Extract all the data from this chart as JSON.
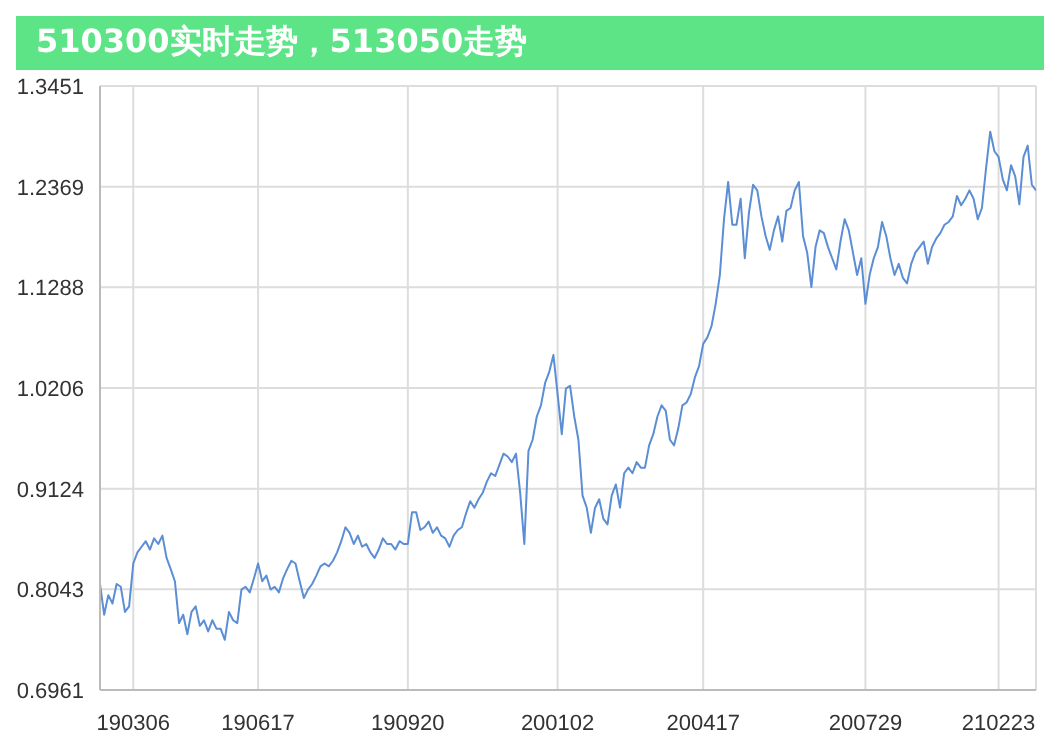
{
  "chart_data": {
    "type": "line",
    "title": "510300实时走势，513050走势",
    "categories": [
      null,
      null,
      null,
      null,
      null,
      null,
      null,
      null,
      "190306",
      null,
      null,
      null,
      null,
      null,
      null,
      null,
      null,
      null,
      null,
      null,
      null,
      null,
      null,
      null,
      null,
      null,
      null,
      null,
      null,
      null,
      null,
      null,
      null,
      null,
      null,
      null,
      null,
      null,
      "190617",
      null,
      null,
      null,
      null,
      null,
      null,
      null,
      null,
      null,
      null,
      null,
      null,
      null,
      null,
      null,
      null,
      null,
      null,
      null,
      null,
      null,
      null,
      null,
      null,
      null,
      null,
      null,
      null,
      null,
      null,
      null,
      null,
      null,
      null,
      null,
      "190920",
      null,
      null,
      null,
      null,
      null,
      null,
      null,
      null,
      null,
      null,
      null,
      null,
      null,
      null,
      null,
      null,
      null,
      null,
      null,
      null,
      null,
      null,
      null,
      null,
      null,
      null,
      null,
      null,
      null,
      null,
      null,
      null,
      null,
      null,
      null,
      "200102",
      null,
      null,
      null,
      null,
      null,
      null,
      null,
      null,
      null,
      null,
      null,
      null,
      null,
      null,
      null,
      null,
      null,
      null,
      null,
      null,
      null,
      null,
      null,
      null,
      null,
      null,
      null,
      null,
      null,
      null,
      null,
      null,
      null,
      null,
      "200417",
      null,
      null,
      null,
      null,
      null,
      null,
      null,
      null,
      null,
      null,
      null,
      null,
      null,
      null,
      null,
      null,
      null,
      null,
      null,
      null,
      null,
      null,
      null,
      null,
      null,
      null,
      null,
      null,
      null,
      null,
      null,
      null,
      null,
      null,
      null,
      null,
      null,
      null,
      "200729",
      null,
      null,
      null,
      null,
      null,
      null,
      null,
      null,
      null,
      null,
      null,
      null,
      null,
      null,
      null,
      null,
      null,
      null,
      null,
      null,
      null,
      null,
      null,
      null,
      null,
      null,
      null,
      null,
      null,
      null,
      null,
      "210223",
      null,
      null,
      null,
      null,
      null,
      null,
      null,
      null,
      null
    ],
    "series": [
      {
        "color": "#5b8ed4",
        "values": [
          0.81,
          0.777,
          0.798,
          0.789,
          0.81,
          0.807,
          0.78,
          0.786,
          0.832,
          0.844,
          0.85,
          0.856,
          0.847,
          0.859,
          0.853,
          0.862,
          0.838,
          0.826,
          0.813,
          0.768,
          0.777,
          0.756,
          0.78,
          0.786,
          0.765,
          0.771,
          0.759,
          0.771,
          0.762,
          0.762,
          0.75,
          0.78,
          0.771,
          0.768,
          0.804,
          0.807,
          0.801,
          0.816,
          0.832,
          0.813,
          0.819,
          0.804,
          0.807,
          0.801,
          0.816,
          0.826,
          0.835,
          0.832,
          0.813,
          0.795,
          0.804,
          0.81,
          0.819,
          0.829,
          0.832,
          0.829,
          0.835,
          0.844,
          0.856,
          0.871,
          0.865,
          0.853,
          0.862,
          0.85,
          0.853,
          0.844,
          0.838,
          0.847,
          0.859,
          0.853,
          0.853,
          0.847,
          0.856,
          0.853,
          0.853,
          0.887,
          0.887,
          0.868,
          0.871,
          0.877,
          0.865,
          0.871,
          0.862,
          0.859,
          0.85,
          0.862,
          0.868,
          0.871,
          0.886,
          0.899,
          0.892,
          0.901,
          0.908,
          0.92,
          0.929,
          0.926,
          0.938,
          0.95,
          0.947,
          0.941,
          0.95,
          0.908,
          0.853,
          0.953,
          0.965,
          0.99,
          1.002,
          1.026,
          1.038,
          1.056,
          1.014,
          0.971,
          1.02,
          1.023,
          0.99,
          0.965,
          0.905,
          0.892,
          0.865,
          0.892,
          0.901,
          0.88,
          0.874,
          0.905,
          0.917,
          0.892,
          0.929,
          0.935,
          0.929,
          0.941,
          0.935,
          0.935,
          0.959,
          0.971,
          0.99,
          1.002,
          0.996,
          0.965,
          0.959,
          0.977,
          1.002,
          1.005,
          1.014,
          1.032,
          1.044,
          1.068,
          1.075,
          1.087,
          1.111,
          1.142,
          1.202,
          1.242,
          1.196,
          1.196,
          1.224,
          1.16,
          1.209,
          1.239,
          1.233,
          1.205,
          1.184,
          1.169,
          1.19,
          1.205,
          1.178,
          1.211,
          1.214,
          1.233,
          1.242,
          1.184,
          1.166,
          1.129,
          1.172,
          1.19,
          1.187,
          1.172,
          1.16,
          1.148,
          1.178,
          1.202,
          1.19,
          1.166,
          1.142,
          1.16,
          1.111,
          1.142,
          1.16,
          1.172,
          1.199,
          1.184,
          1.16,
          1.142,
          1.154,
          1.139,
          1.133,
          1.154,
          1.166,
          1.172,
          1.178,
          1.154,
          1.172,
          1.181,
          1.187,
          1.196,
          1.199,
          1.205,
          1.227,
          1.217,
          1.224,
          1.233,
          1.224,
          1.202,
          1.214,
          1.257,
          1.296,
          1.275,
          1.269,
          1.245,
          1.233,
          1.26,
          1.248,
          1.218,
          1.269,
          1.281,
          1.239,
          1.233
        ]
      }
    ],
    "ylim": [
      0.6961,
      1.3451
    ],
    "yticks": [
      0.6961,
      0.8043,
      0.9124,
      1.0206,
      1.1288,
      1.2369,
      1.3451
    ],
    "grid": true,
    "marker": "none",
    "line_style": "solid"
  }
}
